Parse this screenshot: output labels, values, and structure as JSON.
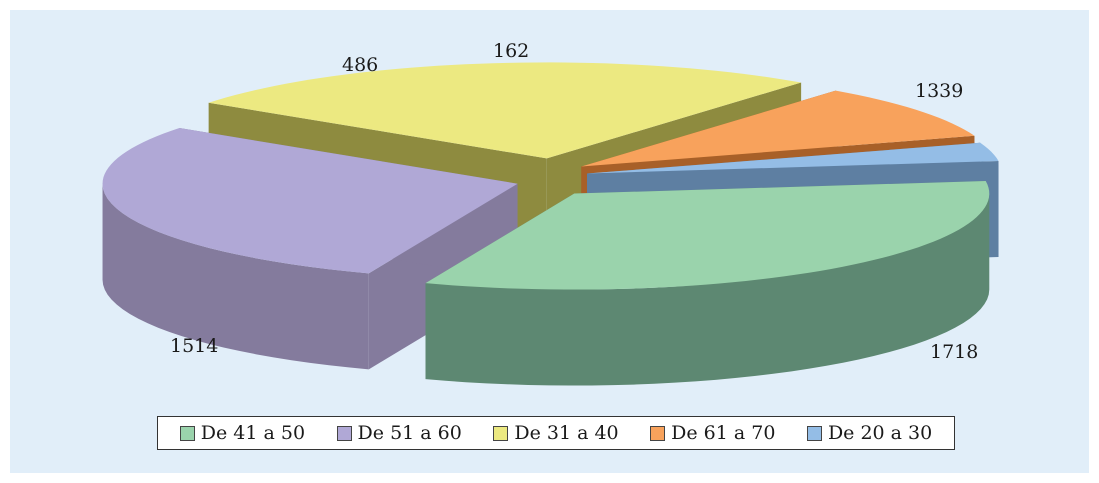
{
  "chart_data": {
    "type": "pie",
    "title": "",
    "style": "3d-exploded",
    "legend_position": "bottom",
    "slices": [
      {
        "label": "De 41 a 50",
        "value": 1718,
        "color": "#9ad3ac",
        "side_color": "#5d8872",
        "value_label": "1718"
      },
      {
        "label": "De 51 a 60",
        "value": 1514,
        "color": "#b0a8d6",
        "side_color": "#847b9d",
        "value_label": "1514"
      },
      {
        "label": "De 31 a 40",
        "value": 1339,
        "color": "#ece981",
        "side_color": "#8e8b3f",
        "value_label": "1339"
      },
      {
        "label": "De 61 a 70",
        "value": 486,
        "color": "#f8a25c",
        "side_color": "#a86028",
        "value_label": "486"
      },
      {
        "label": "De 20 a 30",
        "value": 162,
        "color": "#94bde6",
        "side_color": "#5e7fa2",
        "value_label": "162"
      }
    ]
  }
}
